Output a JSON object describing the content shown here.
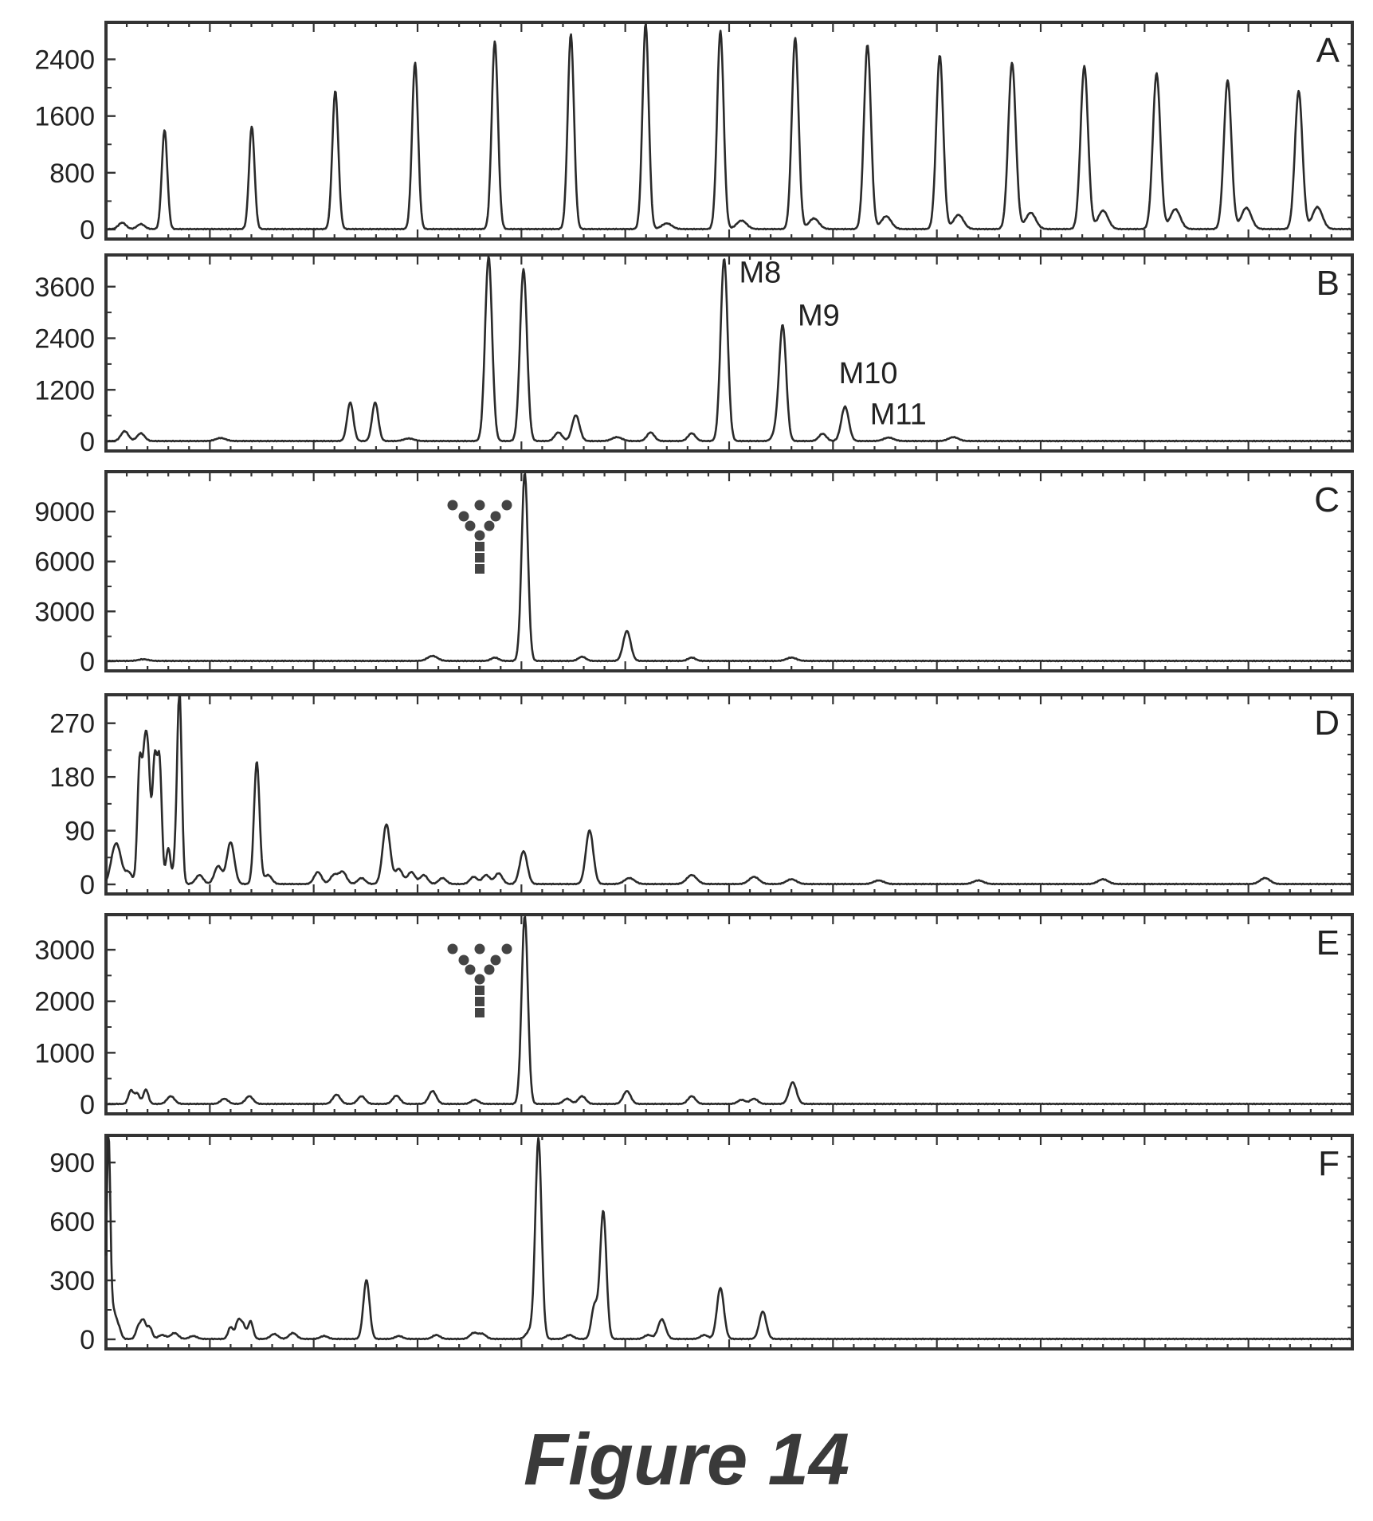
{
  "figure_caption": "Figure 14",
  "chart_data": [
    {
      "type": "line",
      "panel": "A",
      "yticks": [
        "2400",
        "1600",
        "800",
        "0"
      ],
      "ytick_values": [
        2400,
        1600,
        800,
        0
      ],
      "ylim": [
        0,
        2900
      ],
      "xlim": [
        0,
        1
      ],
      "peaks": [
        {
          "x": 0.047,
          "y": 1400,
          "w": 0.0022
        },
        {
          "x": 0.117,
          "y": 1450,
          "w": 0.0022
        },
        {
          "x": 0.184,
          "y": 1950,
          "w": 0.0024
        },
        {
          "x": 0.248,
          "y": 2350,
          "w": 0.0024
        },
        {
          "x": 0.312,
          "y": 2650,
          "w": 0.0025
        },
        {
          "x": 0.373,
          "y": 2750,
          "w": 0.0025
        },
        {
          "x": 0.433,
          "y": 2900,
          "w": 0.0025
        },
        {
          "x": 0.493,
          "y": 2800,
          "w": 0.0026
        },
        {
          "x": 0.553,
          "y": 2700,
          "w": 0.0027
        },
        {
          "x": 0.611,
          "y": 2600,
          "w": 0.0028
        },
        {
          "x": 0.669,
          "y": 2450,
          "w": 0.0028
        },
        {
          "x": 0.727,
          "y": 2350,
          "w": 0.003
        },
        {
          "x": 0.785,
          "y": 2300,
          "w": 0.003
        },
        {
          "x": 0.843,
          "y": 2200,
          "w": 0.003
        },
        {
          "x": 0.9,
          "y": 2100,
          "w": 0.003
        },
        {
          "x": 0.957,
          "y": 1950,
          "w": 0.003
        },
        {
          "x": 0.013,
          "y": 90,
          "w": 0.003
        },
        {
          "x": 0.028,
          "y": 70,
          "w": 0.003
        },
        {
          "x": 0.568,
          "y": 150,
          "w": 0.004
        },
        {
          "x": 0.626,
          "y": 180,
          "w": 0.004
        },
        {
          "x": 0.684,
          "y": 200,
          "w": 0.004
        },
        {
          "x": 0.742,
          "y": 230,
          "w": 0.004
        },
        {
          "x": 0.8,
          "y": 260,
          "w": 0.004
        },
        {
          "x": 0.858,
          "y": 280,
          "w": 0.004
        },
        {
          "x": 0.915,
          "y": 300,
          "w": 0.004
        },
        {
          "x": 0.972,
          "y": 310,
          "w": 0.004
        },
        {
          "x": 0.51,
          "y": 120,
          "w": 0.004
        },
        {
          "x": 0.45,
          "y": 80,
          "w": 0.004
        }
      ]
    },
    {
      "type": "line",
      "panel": "B",
      "yticks": [
        "3600",
        "2400",
        "1200",
        "0"
      ],
      "ytick_values": [
        3600,
        2400,
        1200,
        0
      ],
      "ylim": [
        0,
        4300
      ],
      "xlim": [
        0,
        1
      ],
      "annotations": [
        {
          "text": "M8",
          "x": 0.508,
          "y": 3700
        },
        {
          "text": "M9",
          "x": 0.555,
          "y": 2700
        },
        {
          "text": "M10",
          "x": 0.588,
          "y": 1350
        },
        {
          "text": "M11",
          "x": 0.613,
          "y": 400
        }
      ],
      "peaks": [
        {
          "x": 0.015,
          "y": 230,
          "w": 0.003
        },
        {
          "x": 0.028,
          "y": 180,
          "w": 0.003
        },
        {
          "x": 0.092,
          "y": 70,
          "w": 0.004
        },
        {
          "x": 0.196,
          "y": 900,
          "w": 0.0025
        },
        {
          "x": 0.216,
          "y": 900,
          "w": 0.0025
        },
        {
          "x": 0.243,
          "y": 60,
          "w": 0.004
        },
        {
          "x": 0.307,
          "y": 4300,
          "w": 0.0028
        },
        {
          "x": 0.335,
          "y": 4000,
          "w": 0.0028
        },
        {
          "x": 0.363,
          "y": 200,
          "w": 0.003
        },
        {
          "x": 0.377,
          "y": 600,
          "w": 0.003
        },
        {
          "x": 0.41,
          "y": 90,
          "w": 0.004
        },
        {
          "x": 0.437,
          "y": 200,
          "w": 0.003
        },
        {
          "x": 0.47,
          "y": 180,
          "w": 0.003
        },
        {
          "x": 0.496,
          "y": 4250,
          "w": 0.0028
        },
        {
          "x": 0.538,
          "y": 220,
          "w": 0.003
        },
        {
          "x": 0.543,
          "y": 2650,
          "w": 0.0028
        },
        {
          "x": 0.575,
          "y": 170,
          "w": 0.003
        },
        {
          "x": 0.593,
          "y": 800,
          "w": 0.003
        },
        {
          "x": 0.628,
          "y": 80,
          "w": 0.004
        },
        {
          "x": 0.68,
          "y": 90,
          "w": 0.004
        }
      ]
    },
    {
      "type": "line",
      "panel": "C",
      "yticks": [
        "9000",
        "6000",
        "3000",
        "0"
      ],
      "ytick_values": [
        9000,
        6000,
        3000,
        0
      ],
      "ylim": [
        0,
        11300
      ],
      "xlim": [
        0,
        1
      ],
      "peaks": [
        {
          "x": 0.262,
          "y": 300,
          "w": 0.004
        },
        {
          "x": 0.312,
          "y": 200,
          "w": 0.003
        },
        {
          "x": 0.336,
          "y": 11300,
          "w": 0.0025
        },
        {
          "x": 0.382,
          "y": 250,
          "w": 0.003
        },
        {
          "x": 0.418,
          "y": 1800,
          "w": 0.003
        },
        {
          "x": 0.47,
          "y": 200,
          "w": 0.003
        },
        {
          "x": 0.55,
          "y": 200,
          "w": 0.004
        },
        {
          "x": 0.03,
          "y": 100,
          "w": 0.004
        }
      ]
    },
    {
      "type": "line",
      "panel": "D",
      "yticks": [
        "270",
        "180",
        "90",
        "0"
      ],
      "ytick_values": [
        270,
        180,
        90,
        0
      ],
      "ylim": [
        0,
        315
      ],
      "xlim": [
        0,
        1
      ],
      "peaks": [
        {
          "x": 0.006,
          "y": 40,
          "w": 0.003
        },
        {
          "x": 0.01,
          "y": 45,
          "w": 0.003
        },
        {
          "x": 0.018,
          "y": 20,
          "w": 0.003
        },
        {
          "x": 0.027,
          "y": 200,
          "w": 0.0018
        },
        {
          "x": 0.031,
          "y": 185,
          "w": 0.0018
        },
        {
          "x": 0.034,
          "y": 175,
          "w": 0.0018
        },
        {
          "x": 0.039,
          "y": 200,
          "w": 0.0018
        },
        {
          "x": 0.043,
          "y": 200,
          "w": 0.0018
        },
        {
          "x": 0.05,
          "y": 60,
          "w": 0.0018
        },
        {
          "x": 0.056,
          "y": 40,
          "w": 0.0018
        },
        {
          "x": 0.059,
          "y": 315,
          "w": 0.0018
        },
        {
          "x": 0.075,
          "y": 15,
          "w": 0.003
        },
        {
          "x": 0.09,
          "y": 30,
          "w": 0.003
        },
        {
          "x": 0.1,
          "y": 70,
          "w": 0.003
        },
        {
          "x": 0.121,
          "y": 205,
          "w": 0.0022
        },
        {
          "x": 0.13,
          "y": 15,
          "w": 0.003
        },
        {
          "x": 0.17,
          "y": 20,
          "w": 0.003
        },
        {
          "x": 0.183,
          "y": 15,
          "w": 0.003
        },
        {
          "x": 0.19,
          "y": 20,
          "w": 0.003
        },
        {
          "x": 0.205,
          "y": 10,
          "w": 0.003
        },
        {
          "x": 0.225,
          "y": 100,
          "w": 0.003
        },
        {
          "x": 0.235,
          "y": 25,
          "w": 0.003
        },
        {
          "x": 0.245,
          "y": 20,
          "w": 0.003
        },
        {
          "x": 0.255,
          "y": 15,
          "w": 0.003
        },
        {
          "x": 0.27,
          "y": 10,
          "w": 0.003
        },
        {
          "x": 0.295,
          "y": 12,
          "w": 0.003
        },
        {
          "x": 0.305,
          "y": 15,
          "w": 0.003
        },
        {
          "x": 0.315,
          "y": 18,
          "w": 0.003
        },
        {
          "x": 0.335,
          "y": 55,
          "w": 0.003
        },
        {
          "x": 0.388,
          "y": 90,
          "w": 0.003
        },
        {
          "x": 0.42,
          "y": 10,
          "w": 0.004
        },
        {
          "x": 0.47,
          "y": 15,
          "w": 0.004
        },
        {
          "x": 0.52,
          "y": 12,
          "w": 0.004
        },
        {
          "x": 0.55,
          "y": 8,
          "w": 0.004
        },
        {
          "x": 0.62,
          "y": 6,
          "w": 0.004
        },
        {
          "x": 0.7,
          "y": 6,
          "w": 0.004
        },
        {
          "x": 0.8,
          "y": 8,
          "w": 0.004
        },
        {
          "x": 0.93,
          "y": 10,
          "w": 0.004
        }
      ]
    },
    {
      "type": "line",
      "panel": "E",
      "yticks": [
        "3000",
        "2000",
        "1000",
        "0"
      ],
      "ytick_values": [
        3000,
        2000,
        1000,
        0
      ],
      "ylim": [
        0,
        3650
      ],
      "xlim": [
        0,
        1
      ],
      "peaks": [
        {
          "x": 0.02,
          "y": 260,
          "w": 0.002
        },
        {
          "x": 0.025,
          "y": 200,
          "w": 0.002
        },
        {
          "x": 0.032,
          "y": 280,
          "w": 0.002
        },
        {
          "x": 0.052,
          "y": 150,
          "w": 0.003
        },
        {
          "x": 0.095,
          "y": 100,
          "w": 0.003
        },
        {
          "x": 0.115,
          "y": 150,
          "w": 0.003
        },
        {
          "x": 0.185,
          "y": 180,
          "w": 0.003
        },
        {
          "x": 0.205,
          "y": 150,
          "w": 0.003
        },
        {
          "x": 0.233,
          "y": 160,
          "w": 0.003
        },
        {
          "x": 0.262,
          "y": 250,
          "w": 0.003
        },
        {
          "x": 0.296,
          "y": 80,
          "w": 0.003
        },
        {
          "x": 0.336,
          "y": 3650,
          "w": 0.0025
        },
        {
          "x": 0.37,
          "y": 100,
          "w": 0.003
        },
        {
          "x": 0.382,
          "y": 150,
          "w": 0.003
        },
        {
          "x": 0.418,
          "y": 250,
          "w": 0.003
        },
        {
          "x": 0.47,
          "y": 150,
          "w": 0.003
        },
        {
          "x": 0.51,
          "y": 80,
          "w": 0.003
        },
        {
          "x": 0.52,
          "y": 100,
          "w": 0.003
        },
        {
          "x": 0.551,
          "y": 420,
          "w": 0.003
        }
      ]
    },
    {
      "type": "line",
      "panel": "F",
      "yticks": [
        "900",
        "600",
        "300",
        "0"
      ],
      "ytick_values": [
        900,
        600,
        300,
        0
      ],
      "ylim": [
        0,
        1030
      ],
      "xlim": [
        0,
        1
      ],
      "peaks": [
        {
          "x": 0.002,
          "y": 1030,
          "w": 0.0015
        },
        {
          "x": 0.006,
          "y": 130,
          "w": 0.002
        },
        {
          "x": 0.01,
          "y": 60,
          "w": 0.002
        },
        {
          "x": 0.026,
          "y": 60,
          "w": 0.002
        },
        {
          "x": 0.03,
          "y": 90,
          "w": 0.002
        },
        {
          "x": 0.035,
          "y": 60,
          "w": 0.002
        },
        {
          "x": 0.045,
          "y": 20,
          "w": 0.003
        },
        {
          "x": 0.055,
          "y": 30,
          "w": 0.003
        },
        {
          "x": 0.07,
          "y": 15,
          "w": 0.003
        },
        {
          "x": 0.1,
          "y": 60,
          "w": 0.002
        },
        {
          "x": 0.106,
          "y": 90,
          "w": 0.002
        },
        {
          "x": 0.11,
          "y": 70,
          "w": 0.002
        },
        {
          "x": 0.116,
          "y": 90,
          "w": 0.002
        },
        {
          "x": 0.135,
          "y": 25,
          "w": 0.003
        },
        {
          "x": 0.15,
          "y": 30,
          "w": 0.003
        },
        {
          "x": 0.175,
          "y": 15,
          "w": 0.003
        },
        {
          "x": 0.209,
          "y": 300,
          "w": 0.0025
        },
        {
          "x": 0.235,
          "y": 15,
          "w": 0.003
        },
        {
          "x": 0.265,
          "y": 20,
          "w": 0.003
        },
        {
          "x": 0.295,
          "y": 30,
          "w": 0.003
        },
        {
          "x": 0.302,
          "y": 25,
          "w": 0.003
        },
        {
          "x": 0.34,
          "y": 40,
          "w": 0.003
        },
        {
          "x": 0.347,
          "y": 1020,
          "w": 0.0025
        },
        {
          "x": 0.372,
          "y": 20,
          "w": 0.003
        },
        {
          "x": 0.392,
          "y": 170,
          "w": 0.0025
        },
        {
          "x": 0.399,
          "y": 650,
          "w": 0.0025
        },
        {
          "x": 0.435,
          "y": 20,
          "w": 0.003
        },
        {
          "x": 0.446,
          "y": 100,
          "w": 0.003
        },
        {
          "x": 0.48,
          "y": 20,
          "w": 0.003
        },
        {
          "x": 0.493,
          "y": 260,
          "w": 0.0028
        },
        {
          "x": 0.527,
          "y": 140,
          "w": 0.0028
        }
      ]
    }
  ]
}
